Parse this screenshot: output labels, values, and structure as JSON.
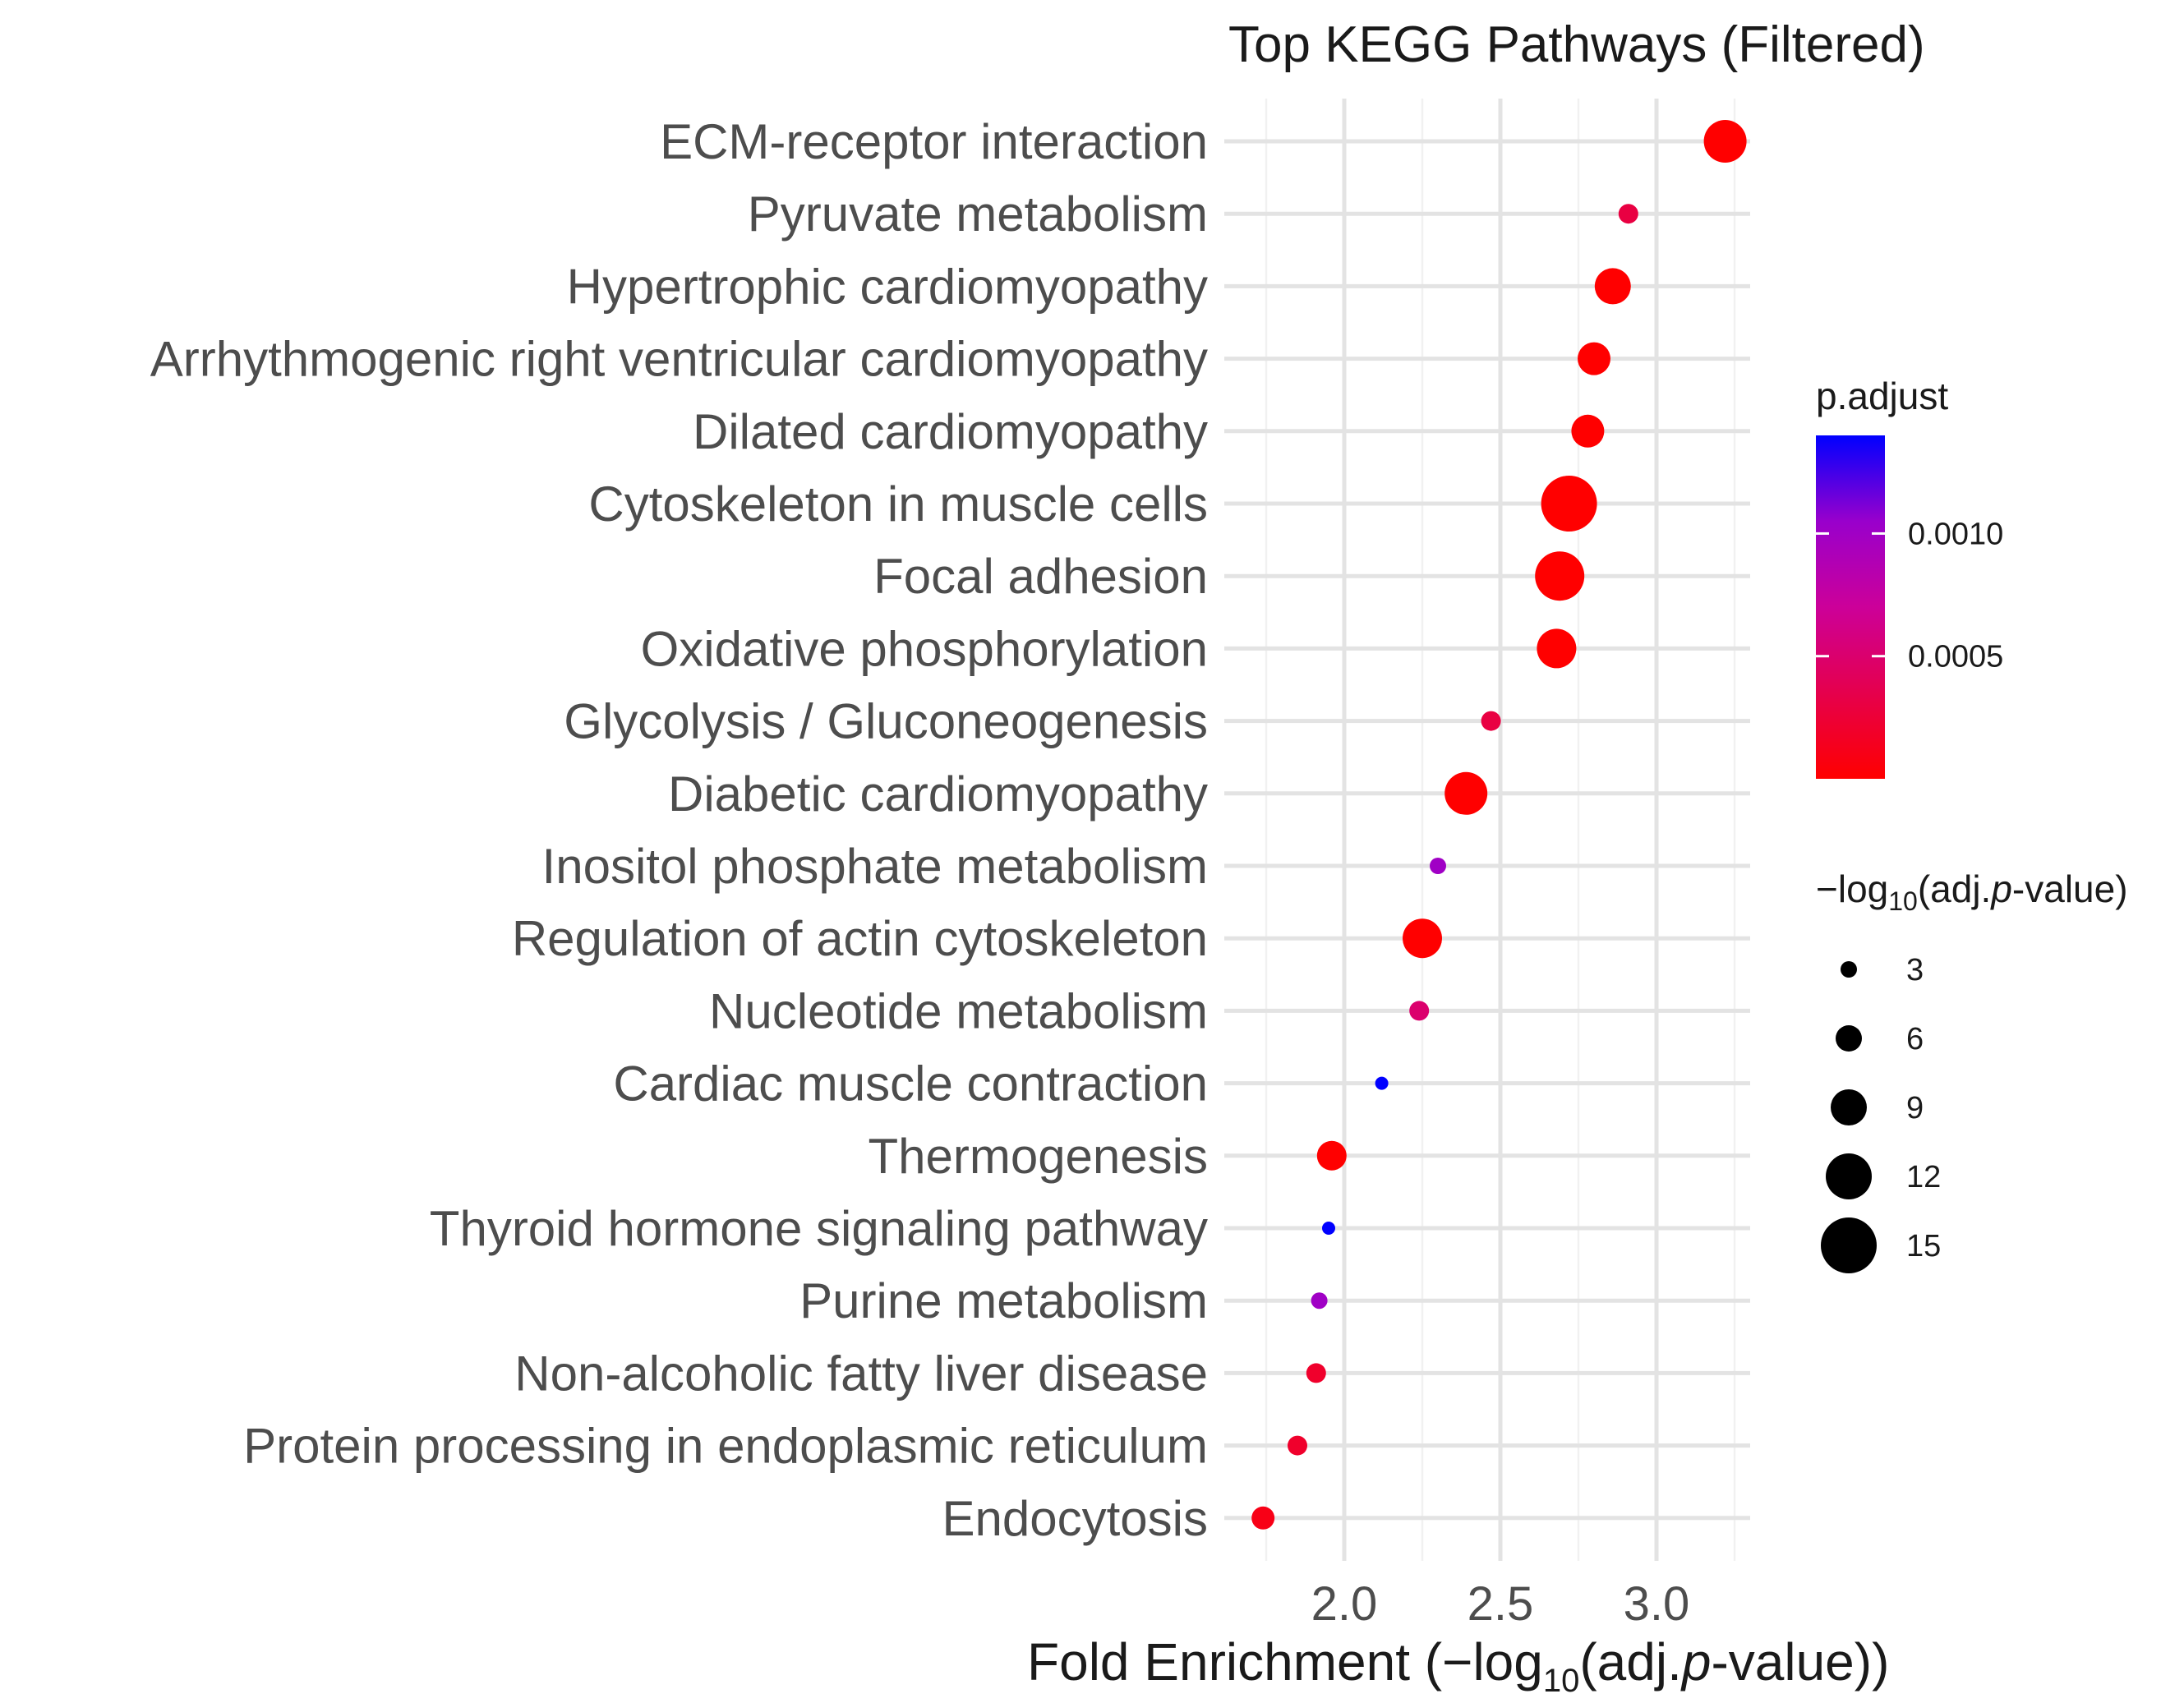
{
  "chart_data": {
    "type": "scatter",
    "title": "Top KEGG Pathways (Filtered)",
    "xlabel": "Fold Enrichment (−log10(adj.p-value))",
    "xlabel_parts": {
      "prefix": "Fold Enrichment (−log",
      "sub": "10",
      "mid": "(adj.",
      "italic": "p",
      "suffix": "-value))"
    },
    "ylabel": "",
    "xlim": [
      1.7,
      3.35
    ],
    "xticks": [
      2.0,
      2.5,
      3.0
    ],
    "xtick_labels": [
      "2.0",
      "2.5",
      "3.0"
    ],
    "grid": true,
    "categories": [
      "ECM-receptor interaction",
      "Pyruvate metabolism",
      "Hypertrophic cardiomyopathy",
      "Arrhythmogenic right ventricular cardiomyopathy",
      "Dilated cardiomyopathy",
      "Cytoskeleton in muscle cells",
      "Focal adhesion",
      "Oxidative phosphorylation",
      "Glycolysis / Gluconeogenesis",
      "Diabetic cardiomyopathy",
      "Inositol phosphate metabolism",
      "Regulation of actin cytoskeleton",
      "Nucleotide metabolism",
      "Cardiac muscle contraction",
      "Thermogenesis",
      "Thyroid hormone signaling pathway",
      "Purine metabolism",
      "Non-alcoholic fatty liver disease",
      "Protein processing in endoplasmic reticulum",
      "Endocytosis"
    ],
    "x": [
      3.22,
      2.91,
      2.86,
      2.8,
      2.78,
      2.72,
      2.69,
      2.68,
      2.47,
      2.39,
      2.3,
      2.25,
      2.24,
      2.12,
      1.96,
      1.95,
      1.92,
      1.91,
      1.85,
      1.74
    ],
    "size": [
      11,
      4,
      9,
      8,
      8,
      15,
      13,
      10,
      4,
      11,
      3,
      10,
      4,
      2,
      7,
      2,
      3,
      4,
      4,
      5
    ],
    "p_adjust": [
      0.0,
      0.0003,
      0.0,
      0.0,
      0.0,
      0.0,
      0.0,
      0.0,
      0.0003,
      0.0,
      0.001,
      0.0,
      0.0005,
      0.0014,
      0.0,
      0.0014,
      0.001,
      0.0002,
      0.0002,
      0.0001
    ],
    "color_legend": {
      "title": "p.adjust",
      "range": [
        0.0,
        0.0014
      ],
      "ticks": [
        0.001,
        0.0005
      ],
      "tick_labels": [
        "0.0010",
        "0.0005"
      ],
      "low_color": "#ff0000",
      "high_color": "#0000ff"
    },
    "size_legend": {
      "title": "−log10(adj.p-value)",
      "title_parts": {
        "prefix": "−log",
        "sub": "10",
        "mid": "(adj.",
        "italic": "p",
        "suffix": "-value)"
      },
      "values": [
        3,
        6,
        9,
        12,
        15
      ],
      "labels": [
        "3",
        "6",
        "9",
        "12",
        "15"
      ],
      "point_color": "#000000"
    }
  }
}
